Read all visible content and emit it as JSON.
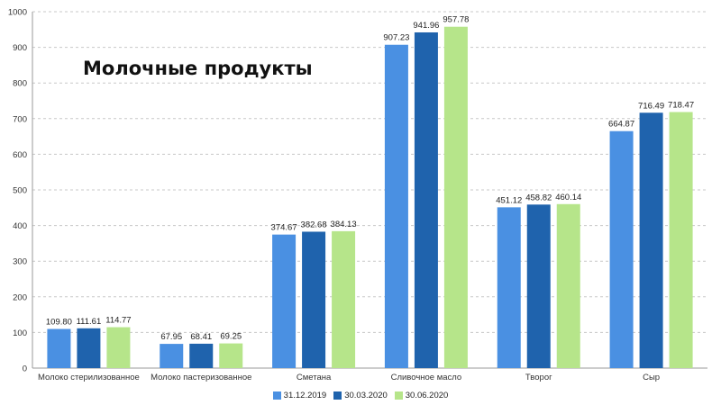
{
  "chart_data": {
    "type": "bar",
    "title": "Молочные продукты",
    "xlabel": "",
    "ylabel": "",
    "ylim": [
      0,
      1000
    ],
    "yticks": [
      0,
      100,
      200,
      300,
      400,
      500,
      600,
      700,
      800,
      900,
      1000
    ],
    "grid": true,
    "legend_position": "bottom",
    "categories": [
      "Молоко стерилизованное",
      "Молоко пастеризованное",
      "Сметана",
      "Сливочное масло",
      "Творог",
      "Сыр"
    ],
    "series": [
      {
        "name": "31.12.2019",
        "color": "#4a90e2",
        "values": [
          109.8,
          67.95,
          374.67,
          907.23,
          451.12,
          664.87
        ],
        "labels": [
          "109.80",
          "67.95",
          "374.67",
          "907.23",
          "451.12",
          "664.87"
        ]
      },
      {
        "name": "30.03.2020",
        "color": "#1f63ad",
        "values": [
          111.61,
          68.41,
          382.68,
          941.96,
          458.82,
          716.49
        ],
        "labels": [
          "111.61",
          "68.41",
          "382.68",
          "941.96",
          "458.82",
          "716.49"
        ]
      },
      {
        "name": "30.06.2020",
        "color": "#b6e58a",
        "values": [
          114.77,
          69.25,
          384.13,
          957.78,
          460.14,
          718.47
        ],
        "labels": [
          "114.77",
          "69.25",
          "384.13",
          "957.78",
          "460.14",
          "718.47"
        ]
      }
    ]
  }
}
